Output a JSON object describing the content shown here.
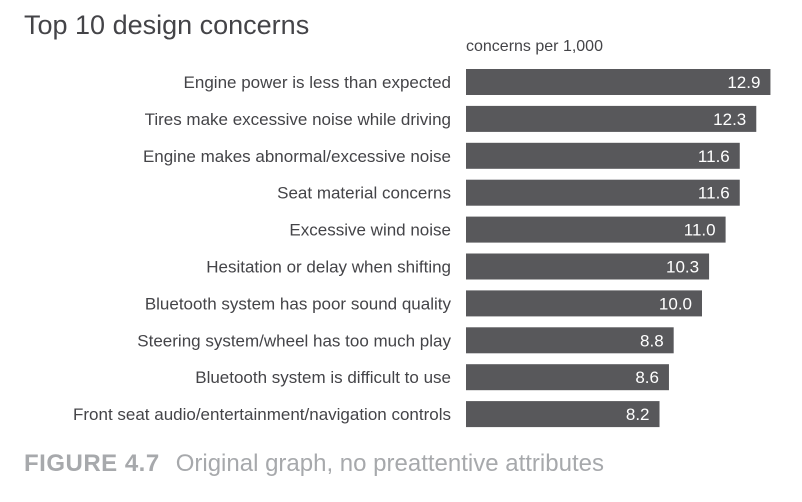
{
  "chart_data": {
    "type": "bar",
    "orientation": "horizontal",
    "title": "Top 10 design concerns",
    "unit_label": "concerns per 1,000",
    "categories": [
      "Engine power is less than expected",
      "Tires make excessive noise while driving",
      "Engine makes abnormal/excessive noise",
      "Seat material concerns",
      "Excessive wind noise",
      "Hesitation or delay when shifting",
      "Bluetooth system has poor sound quality",
      "Steering system/wheel has too much play",
      "Bluetooth system is difficult to use",
      "Front seat audio/entertainment/navigation controls"
    ],
    "values": [
      12.9,
      12.3,
      11.6,
      11.6,
      11.0,
      10.3,
      10.0,
      8.8,
      8.6,
      8.2
    ],
    "value_labels": [
      "12.9",
      "12.3",
      "11.6",
      "11.6",
      "11.0",
      "10.3",
      "10.0",
      "8.8",
      "8.6",
      "8.2"
    ],
    "bar_color": "#58585b",
    "label_color": "#444448",
    "value_label_color": "#ffffff",
    "grid": false,
    "legend": "none"
  },
  "caption": {
    "figure_number": "FIGURE 4.7",
    "text": "Original graph, no preattentive attributes"
  }
}
